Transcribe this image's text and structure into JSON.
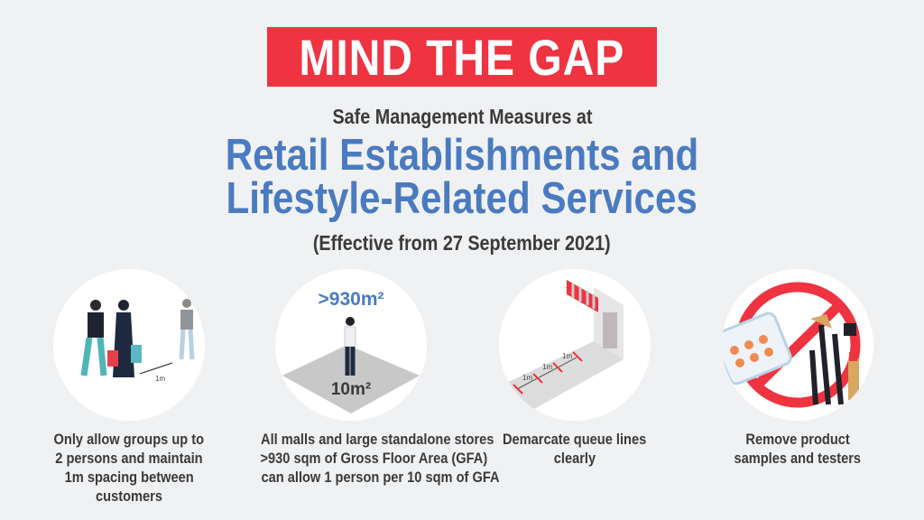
{
  "banner": {
    "title": "MIND THE GAP"
  },
  "header": {
    "subtitle": "Safe Management Measures at",
    "heading_line1": "Retail Establishments and",
    "heading_line2": "Lifestyle-Related Services",
    "effective": "(Effective from 27 September 2021)"
  },
  "measures": [
    {
      "icon": "shoppers-distancing-illustration",
      "label": "1m",
      "caption": [
        "Only allow groups up to",
        "2 persons and maintain",
        "1m spacing between",
        "customers"
      ]
    },
    {
      "icon": "floor-area-illustration",
      "area_top": ">930m²",
      "area_floor": "10m²",
      "caption": [
        "All malls and large standalone stores",
        ">930 sqm of Gross Floor Area (GFA)",
        "can allow 1 person per 10 sqm of GFA"
      ]
    },
    {
      "icon": "queue-lines-illustration",
      "labels": [
        "1m",
        "1m",
        "1m"
      ],
      "caption": [
        "Demarcate queue lines",
        "clearly"
      ]
    },
    {
      "icon": "no-samples-illustration",
      "caption": [
        "Remove product",
        "samples and testers"
      ]
    }
  ],
  "colors": {
    "red": "#ef3340",
    "blue": "#4a7bc0",
    "background": "#f0f1f3"
  }
}
